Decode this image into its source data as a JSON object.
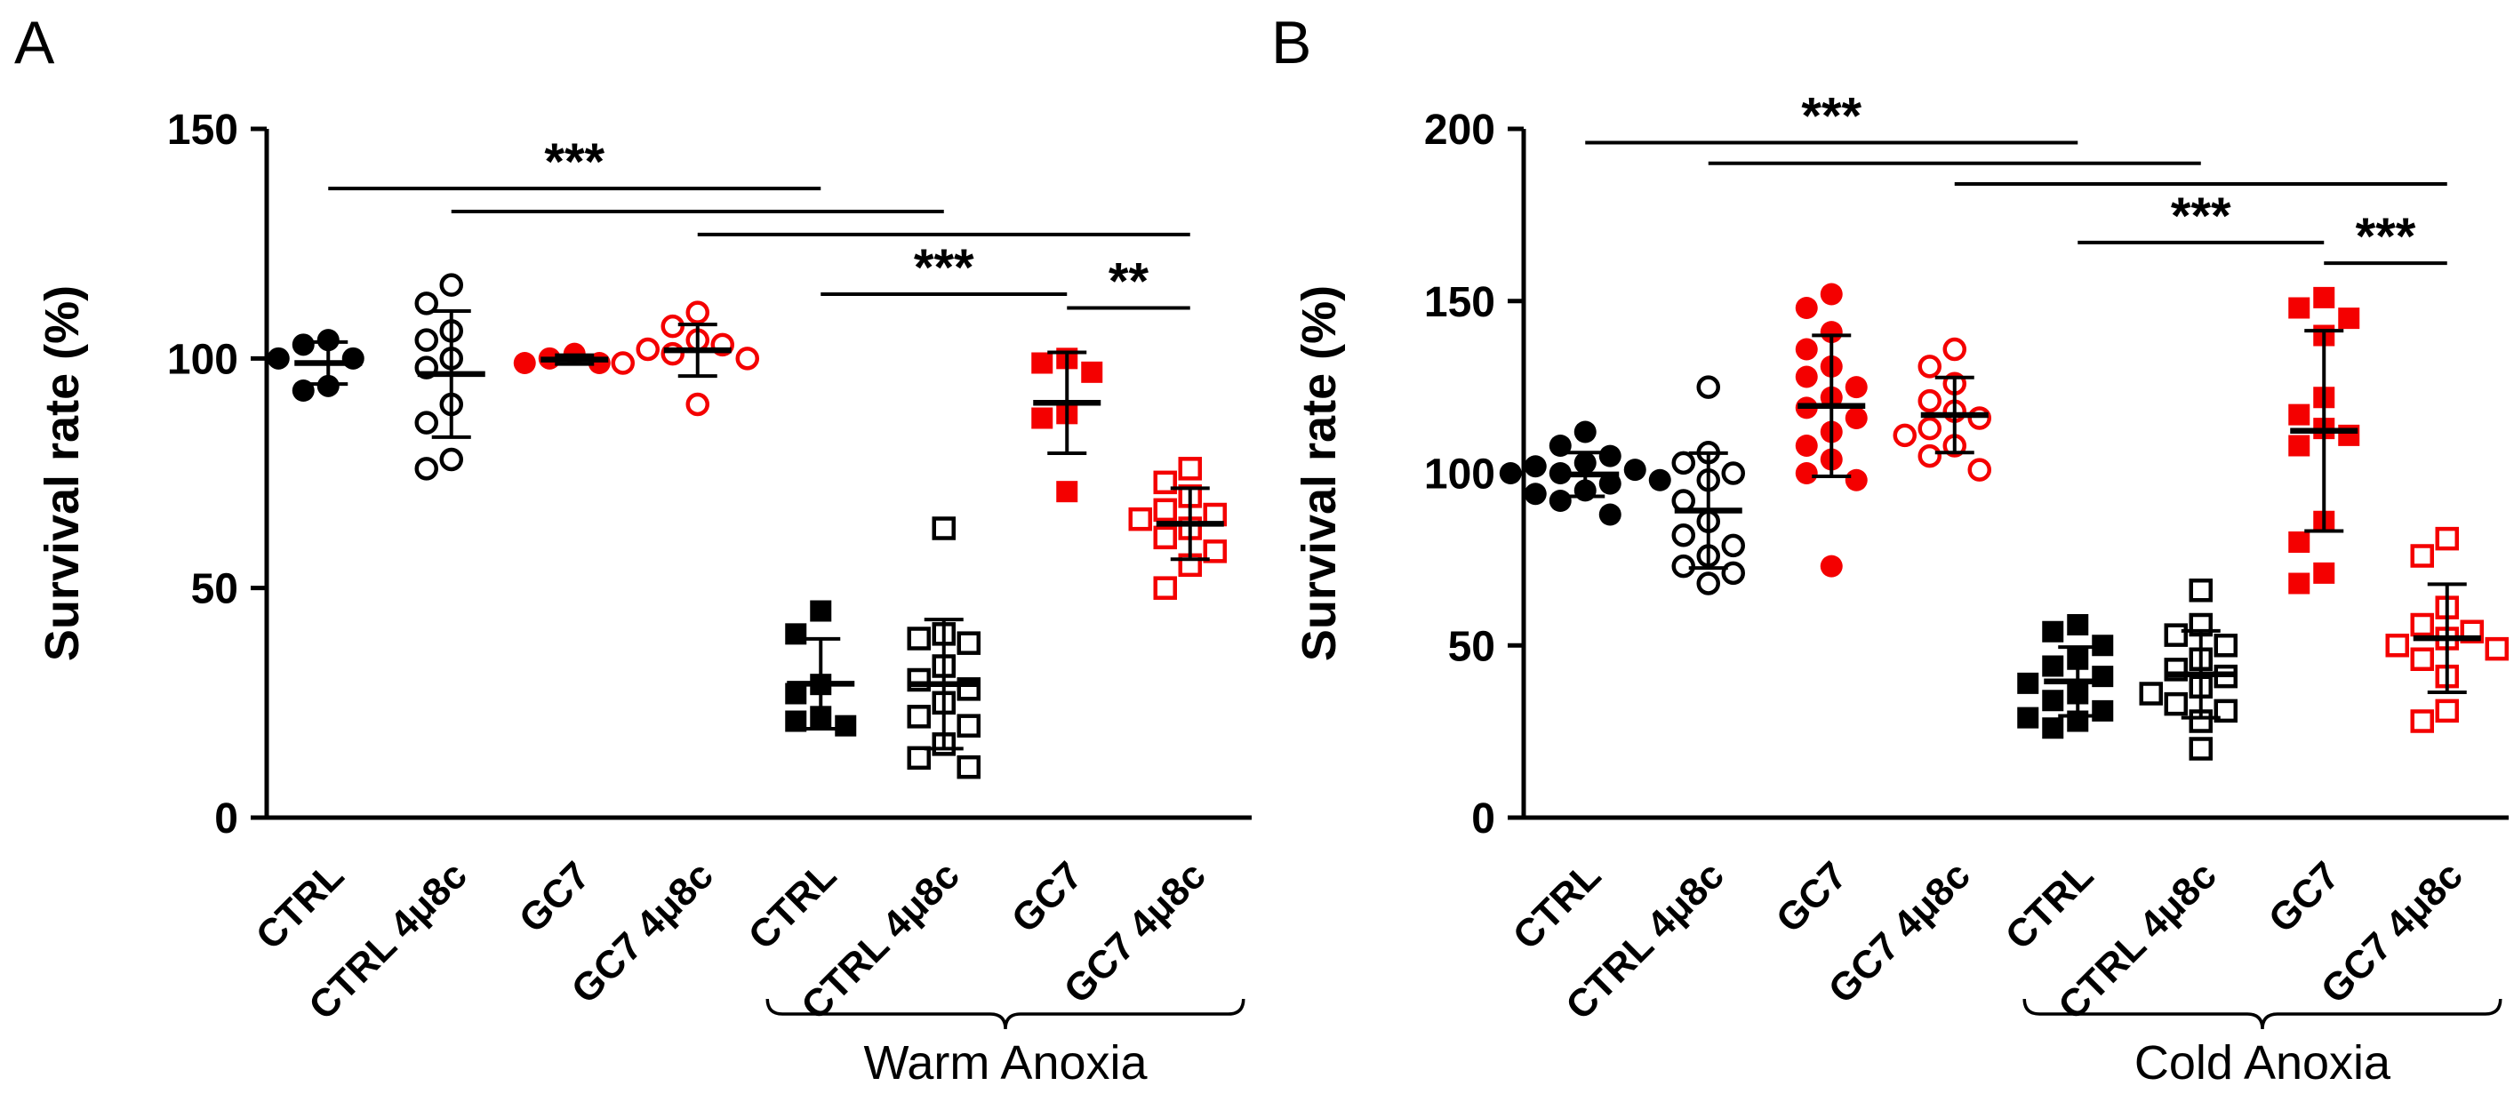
{
  "chart_data": [
    {
      "type": "scatter",
      "letter": "A",
      "title": "",
      "ylabel": "Survival rate (%)",
      "ylim": [
        0,
        150
      ],
      "yticks": [
        0,
        50,
        100,
        150
      ],
      "grid": false,
      "categories": [
        "CTRL",
        "CTRL 4μ8c",
        "GC7",
        "GC7 4μ8c",
        "CTRL",
        "CTRL 4μ8c",
        "GC7",
        "GC7 4μ8c"
      ],
      "bracket": {
        "label": "Warm Anoxia",
        "from": 4,
        "to": 7
      },
      "groups": [
        {
          "label": "CTRL",
          "marker": "circle",
          "fill": "solid",
          "color": "#000000",
          "values": [
            104,
            103,
            100,
            100,
            94,
            93
          ]
        },
        {
          "label": "CTRL 4μ8c",
          "marker": "circle",
          "fill": "open",
          "color": "#000000",
          "values": [
            116,
            112,
            106,
            104,
            100,
            98,
            90,
            86,
            78,
            76
          ]
        },
        {
          "label": "GC7",
          "marker": "circle",
          "fill": "solid",
          "color": "#f40000",
          "values": [
            101,
            100,
            99,
            99
          ]
        },
        {
          "label": "GC7 4μ8c",
          "marker": "circle",
          "fill": "open",
          "color": "#f40000",
          "values": [
            110,
            107,
            104,
            103,
            102,
            101,
            100,
            99,
            90
          ]
        },
        {
          "label": "CTRL (Warm Anoxia)",
          "marker": "square",
          "fill": "solid",
          "color": "#000000",
          "values": [
            45,
            40,
            29,
            27,
            22,
            21,
            20
          ]
        },
        {
          "label": "CTRL 4μ8c (Warm Anoxia)",
          "marker": "square",
          "fill": "open",
          "color": "#000000",
          "values": [
            63,
            40,
            39,
            38,
            33,
            30,
            28,
            25,
            22,
            20,
            16,
            13,
            11
          ]
        },
        {
          "label": "GC7 (Warm Anoxia)",
          "marker": "square",
          "fill": "solid",
          "color": "#f40000",
          "values": [
            100,
            99,
            97,
            88,
            87,
            71
          ]
        },
        {
          "label": "GC7 4μ8c (Warm Anoxia)",
          "marker": "square",
          "fill": "open",
          "color": "#f40000",
          "values": [
            76,
            73,
            70,
            67,
            66,
            65,
            63,
            61,
            58,
            55,
            50
          ]
        }
      ],
      "sig_bars": [
        {
          "from": 0,
          "to": 4,
          "y": 137,
          "stars": "***"
        },
        {
          "from": 1,
          "to": 5,
          "y": 132,
          "stars": ""
        },
        {
          "from": 3,
          "to": 7,
          "y": 127,
          "stars": ""
        },
        {
          "from": 4,
          "to": 6,
          "y": 114,
          "stars": "***"
        },
        {
          "from": 6,
          "to": 7,
          "y": 111,
          "stars": "**"
        }
      ]
    },
    {
      "type": "scatter",
      "letter": "B",
      "title": "",
      "ylabel": "Survival rate (%)",
      "ylim": [
        0,
        200
      ],
      "yticks": [
        0,
        50,
        100,
        150,
        200
      ],
      "grid": false,
      "categories": [
        "CTRL",
        "CTRL 4μ8c",
        "GC7",
        "GC7 4μ8c",
        "CTRL",
        "CTRL 4μ8c",
        "GC7",
        "GC7 4μ8c"
      ],
      "bracket": {
        "label": "Cold Anoxia",
        "from": 4,
        "to": 7
      },
      "groups": [
        {
          "label": "CTRL",
          "marker": "circle",
          "fill": "solid",
          "color": "#000000",
          "values": [
            112,
            108,
            105,
            103,
            102,
            101,
            100,
            100,
            98,
            97,
            95,
            94,
            92,
            88
          ]
        },
        {
          "label": "CTRL 4μ8c",
          "marker": "circle",
          "fill": "open",
          "color": "#000000",
          "values": [
            125,
            106,
            103,
            100,
            98,
            92,
            86,
            82,
            79,
            76,
            73,
            71,
            68
          ]
        },
        {
          "label": "GC7",
          "marker": "circle",
          "fill": "solid",
          "color": "#f40000",
          "values": [
            152,
            148,
            141,
            136,
            131,
            128,
            125,
            122,
            119,
            116,
            112,
            108,
            104,
            100,
            98,
            73
          ]
        },
        {
          "label": "GC7 4μ8c",
          "marker": "circle",
          "fill": "open",
          "color": "#f40000",
          "values": [
            136,
            131,
            126,
            121,
            118,
            116,
            113,
            111,
            108,
            105,
            101
          ]
        },
        {
          "label": "CTRL (Cold Anoxia)",
          "marker": "square",
          "fill": "solid",
          "color": "#000000",
          "values": [
            56,
            54,
            50,
            46,
            44,
            41,
            39,
            36,
            34,
            31,
            29,
            28,
            26
          ]
        },
        {
          "label": "CTRL 4μ8c (Cold Anoxia)",
          "marker": "square",
          "fill": "open",
          "color": "#000000",
          "values": [
            66,
            56,
            53,
            50,
            46,
            43,
            41,
            38,
            36,
            33,
            31,
            28,
            20
          ]
        },
        {
          "label": "GC7 (Cold Anoxia)",
          "marker": "square",
          "fill": "solid",
          "color": "#f40000",
          "values": [
            151,
            148,
            145,
            140,
            122,
            117,
            113,
            111,
            108,
            86,
            80,
            71,
            68
          ]
        },
        {
          "label": "GC7 4μ8c (Cold Anoxia)",
          "marker": "square",
          "fill": "open",
          "color": "#f40000",
          "values": [
            81,
            76,
            61,
            56,
            54,
            52,
            50,
            49,
            46,
            41,
            31,
            28
          ]
        }
      ],
      "sig_bars": [
        {
          "from": 0,
          "to": 4,
          "y": 196,
          "stars": "***"
        },
        {
          "from": 1,
          "to": 5,
          "y": 190,
          "stars": ""
        },
        {
          "from": 3,
          "to": 7,
          "y": 184,
          "stars": ""
        },
        {
          "from": 4,
          "to": 6,
          "y": 167,
          "stars": "***"
        },
        {
          "from": 6,
          "to": 7,
          "y": 161,
          "stars": "***"
        }
      ]
    }
  ]
}
